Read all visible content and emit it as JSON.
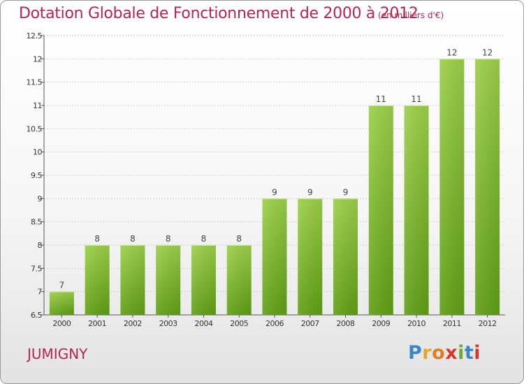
{
  "title": "Dotation Globale de Fonctionnement de 2000 à 2012",
  "subtitle": "(en milliers d'€)",
  "commune": "JUMIGNY",
  "logo": "Proxiti",
  "colors": {
    "title": "#b3264f",
    "bar_top": "#9ccf48",
    "bar_bottom": "#5f9e14",
    "grid": "#cfcfcf",
    "axis": "#555555"
  },
  "chart_data": {
    "type": "bar",
    "categories": [
      "2000",
      "2001",
      "2002",
      "2003",
      "2004",
      "2005",
      "2006",
      "2007",
      "2008",
      "2009",
      "2010",
      "2011",
      "2012"
    ],
    "values": [
      7,
      8,
      8,
      8,
      8,
      8,
      9,
      9,
      9,
      11,
      11,
      12,
      12
    ],
    "data_labels": [
      "7",
      "8",
      "8",
      "8",
      "8",
      "8",
      "9",
      "9",
      "9",
      "11",
      "11",
      "12",
      "12"
    ],
    "yticks": [
      6.5,
      7,
      7.5,
      8,
      8.5,
      9,
      9.5,
      10,
      10.5,
      11,
      11.5,
      12,
      12.5
    ],
    "ytick_labels": [
      "6.5",
      "7",
      "7.5",
      "8",
      "8.5",
      "9",
      "9.5",
      "10",
      "10.5",
      "11",
      "11.5",
      "12",
      "12.5"
    ],
    "ylim": [
      6.5,
      12.5
    ],
    "grid": true
  }
}
